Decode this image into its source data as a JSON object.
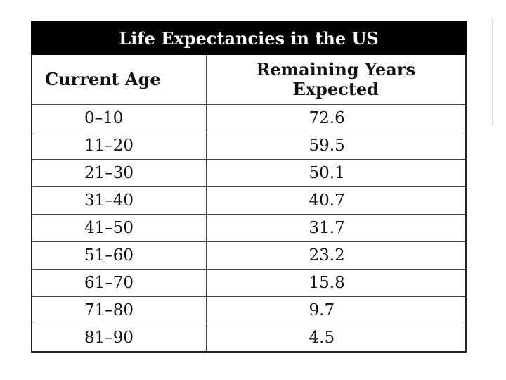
{
  "table": {
    "title": "Life Expectancies in the US",
    "headers": [
      "Current Age",
      "Remaining Years Expected"
    ],
    "rows": [
      {
        "age": "0–10",
        "years": "72.6"
      },
      {
        "age": "11–20",
        "years": "59.5"
      },
      {
        "age": "21–30",
        "years": "50.1"
      },
      {
        "age": "31–40",
        "years": "40.7"
      },
      {
        "age": "41–50",
        "years": "31.7"
      },
      {
        "age": "51–60",
        "years": "23.2"
      },
      {
        "age": "61–70",
        "years": "15.8"
      },
      {
        "age": "71–80",
        "years": "9.7"
      },
      {
        "age": "81–90",
        "years": "4.5"
      }
    ]
  },
  "chart_data": {
    "type": "table",
    "title": "Life Expectancies in the US",
    "columns": [
      "Current Age",
      "Remaining Years Expected"
    ],
    "categories": [
      "0–10",
      "11–20",
      "21–30",
      "31–40",
      "41–50",
      "51–60",
      "61–70",
      "71–80",
      "81–90"
    ],
    "values": [
      72.6,
      59.5,
      50.1,
      40.7,
      31.7,
      23.2,
      15.8,
      9.7,
      4.5
    ]
  }
}
